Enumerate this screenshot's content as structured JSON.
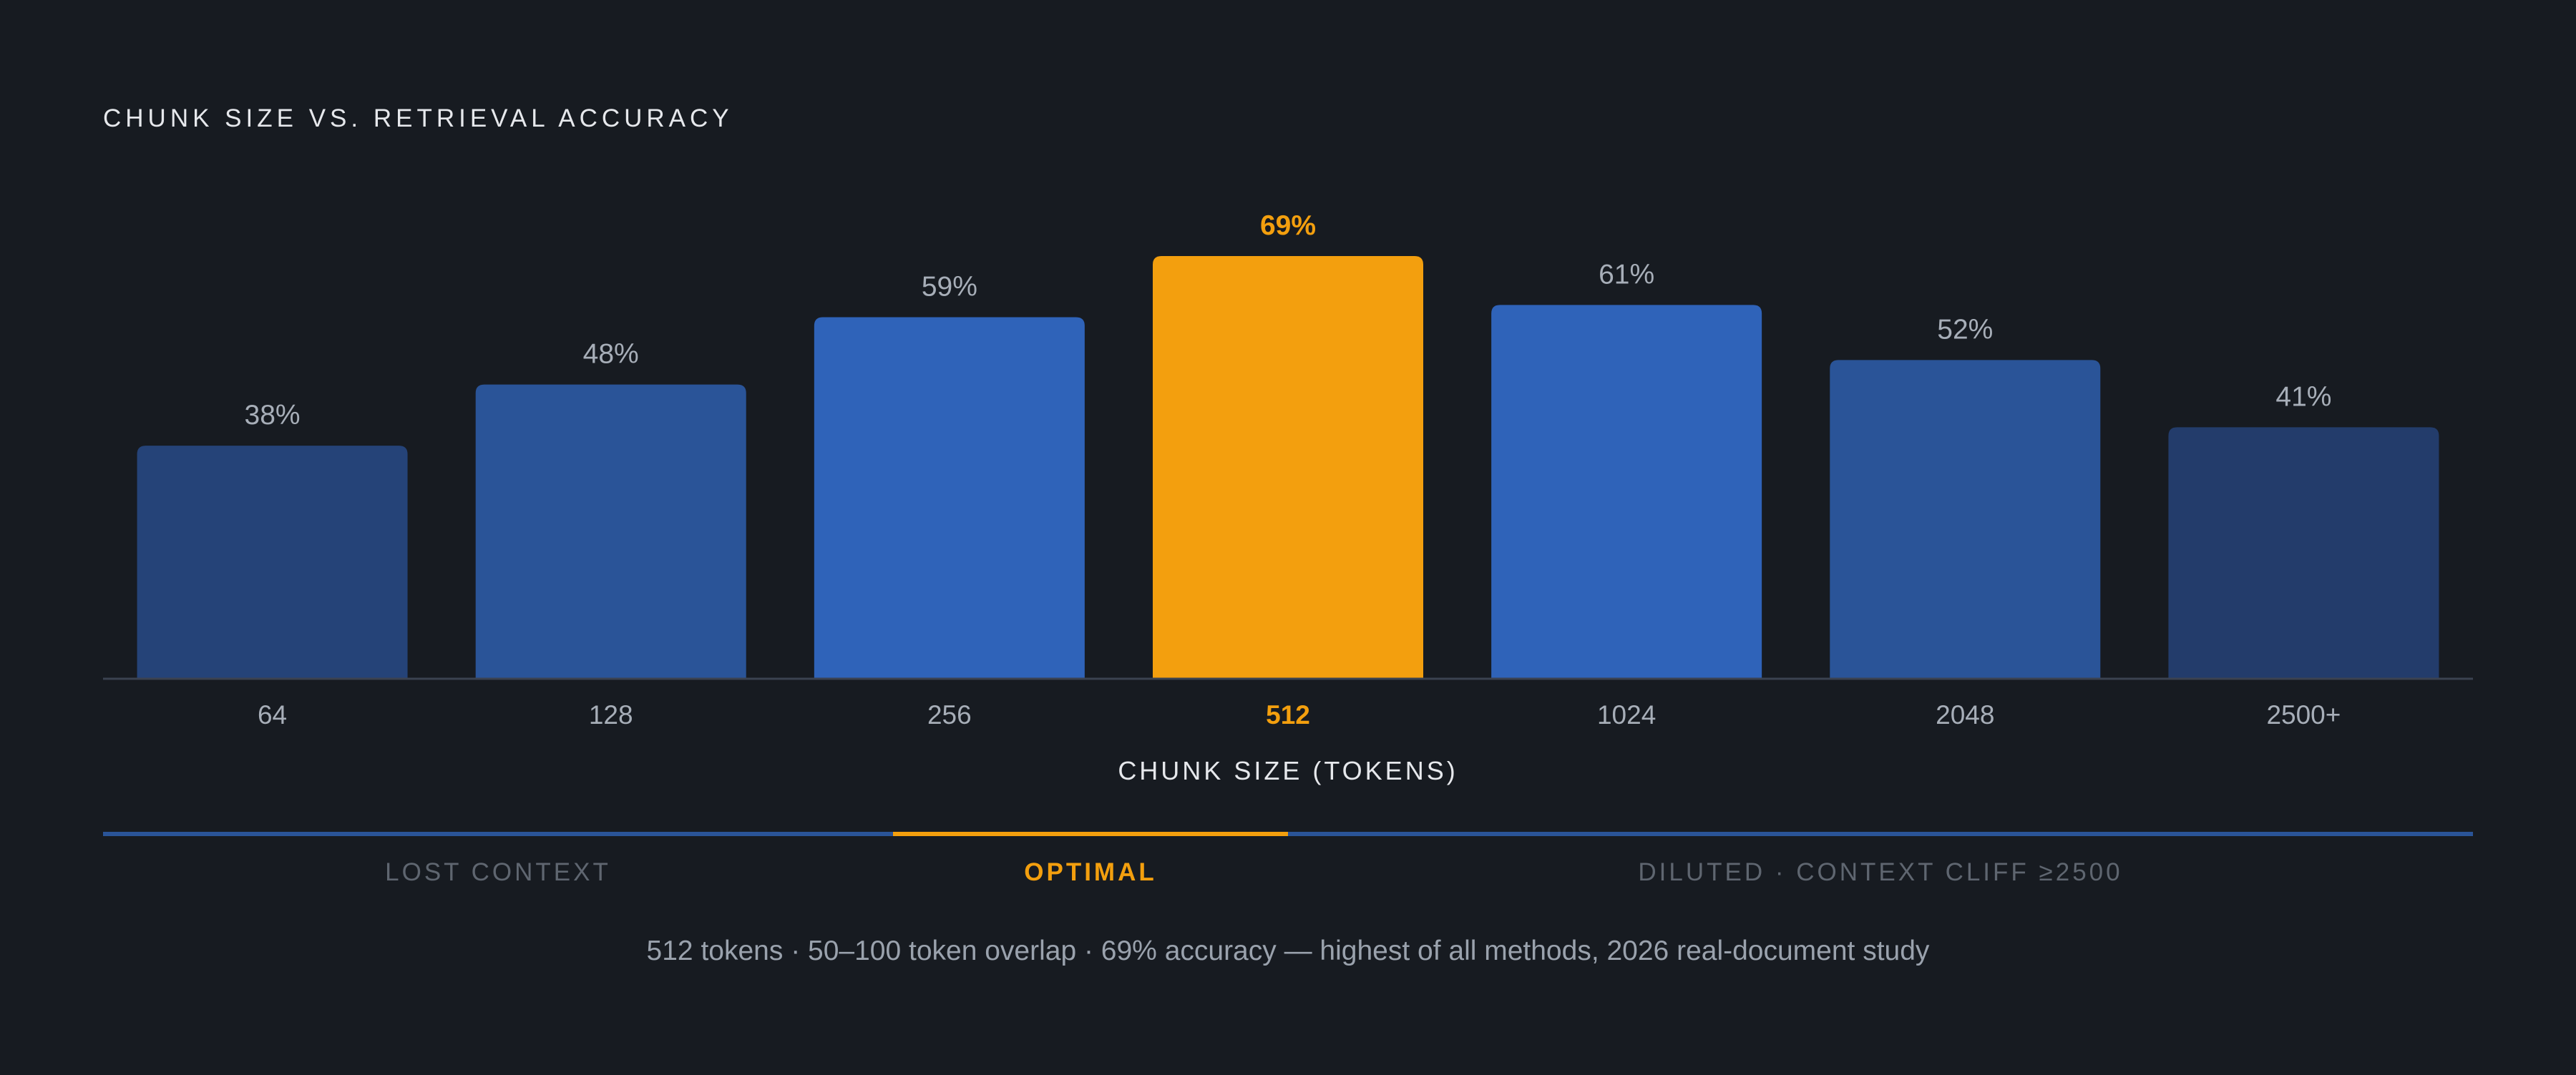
{
  "chart_data": {
    "type": "bar",
    "title": "CHUNK SIZE VS. RETRIEVAL ACCURACY",
    "xlabel": "CHUNK SIZE (TOKENS)",
    "ylabel": "",
    "categories": [
      "64",
      "128",
      "256",
      "512",
      "1024",
      "2048",
      "2500+"
    ],
    "values": [
      38,
      48,
      59,
      69,
      61,
      52,
      41
    ],
    "value_labels": [
      "38%",
      "48%",
      "59%",
      "69%",
      "61%",
      "52%",
      "41%"
    ],
    "highlight_category": "512",
    "ylim": [
      0,
      100
    ],
    "grid": false,
    "bar_colors": [
      "#254378",
      "#2a5498",
      "#2f63b9",
      "#f39f0e",
      "#2f63b9",
      "#2a5498",
      "#233c6b"
    ]
  },
  "ranges": [
    {
      "label": "LOST CONTEXT",
      "color": "#2a5498",
      "text_color": "#5f6670"
    },
    {
      "label": "OPTIMAL",
      "color": "#f39f0e",
      "text_color": "#f39f0e"
    },
    {
      "label": "DILUTED · CONTEXT CLIFF ≥2500",
      "color": "#2a5498",
      "text_color": "#5f6670"
    }
  ],
  "footnote": "512 tokens · 50–100 token overlap · 69% accuracy — highest of all methods, 2026 real-document study",
  "colors": {
    "background": "#171b21",
    "accent": "#f39f0e",
    "baseline": "#3b4250",
    "label_text": "#a7aeb8",
    "title_text": "#e6e8ec"
  }
}
